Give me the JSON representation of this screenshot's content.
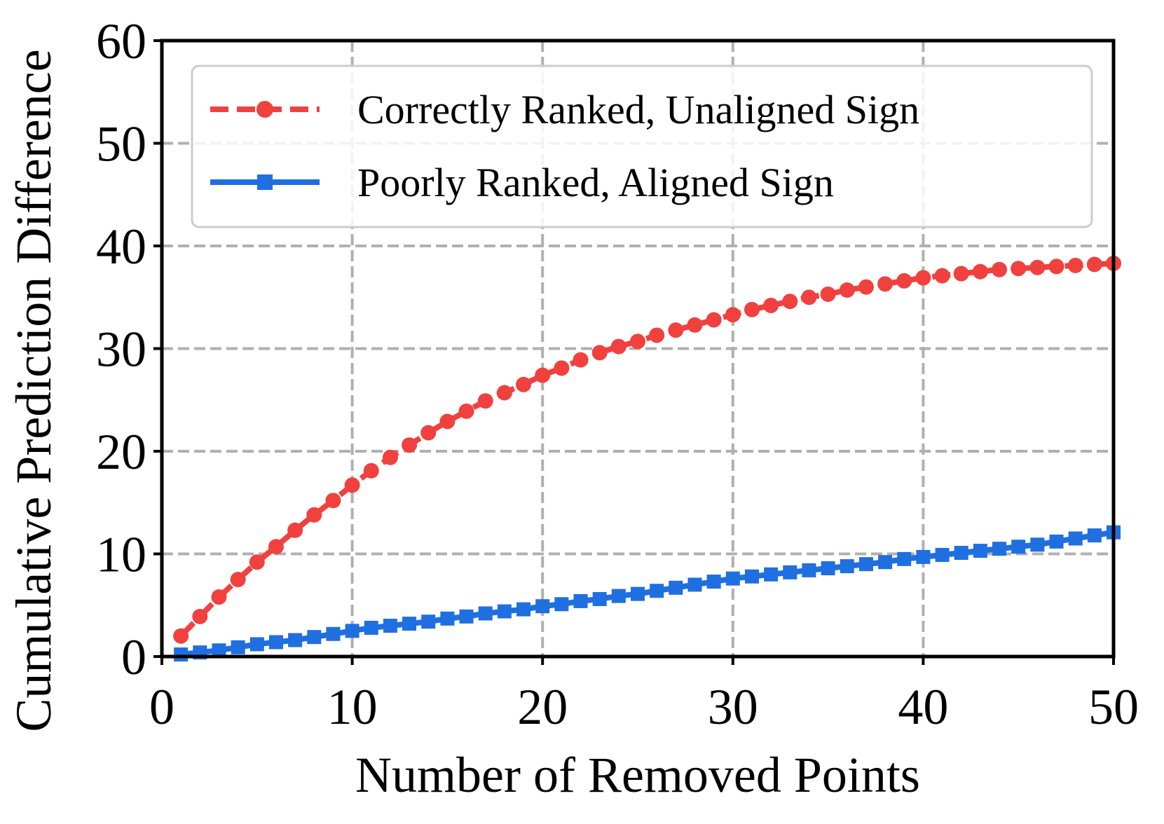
{
  "chart_data": {
    "type": "line",
    "title": "",
    "xlabel": "Number of Removed Points",
    "ylabel": "Cumulative Prediction Difference",
    "xlim": [
      0,
      50
    ],
    "ylim": [
      0,
      60
    ],
    "xticks": [
      0,
      10,
      20,
      30,
      40,
      50
    ],
    "yticks": [
      0,
      10,
      20,
      30,
      40,
      50,
      60
    ],
    "xtick_labels": [
      "0",
      "10",
      "20",
      "30",
      "40",
      "50"
    ],
    "ytick_labels": [
      "0",
      "10",
      "20",
      "30",
      "40",
      "50",
      "60"
    ],
    "grid": true,
    "legend_position": "top-right",
    "x": [
      1,
      2,
      3,
      4,
      5,
      6,
      7,
      8,
      9,
      10,
      11,
      12,
      13,
      14,
      15,
      16,
      17,
      18,
      19,
      20,
      21,
      22,
      23,
      24,
      25,
      26,
      27,
      28,
      29,
      30,
      31,
      32,
      33,
      34,
      35,
      36,
      37,
      38,
      39,
      40,
      41,
      42,
      43,
      44,
      45,
      46,
      47,
      48,
      49,
      50
    ],
    "series": [
      {
        "name": "Correctly Ranked, Unaligned Sign",
        "color": "#f0413f",
        "line_style": "dashed",
        "marker": "circle",
        "values": [
          2.0,
          3.9,
          5.8,
          7.5,
          9.2,
          10.7,
          12.3,
          13.8,
          15.2,
          16.7,
          18.1,
          19.4,
          20.6,
          21.8,
          22.9,
          23.9,
          24.9,
          25.7,
          26.5,
          27.4,
          28.1,
          28.9,
          29.6,
          30.2,
          30.7,
          31.3,
          31.8,
          32.3,
          32.8,
          33.3,
          33.8,
          34.2,
          34.6,
          35.0,
          35.3,
          35.7,
          36.0,
          36.3,
          36.6,
          36.9,
          37.1,
          37.3,
          37.5,
          37.7,
          37.8,
          37.9,
          38.0,
          38.1,
          38.2,
          38.3
        ]
      },
      {
        "name": "Poorly Ranked, Aligned Sign",
        "color": "#1f6fe0",
        "line_style": "solid",
        "marker": "square",
        "values": [
          0.2,
          0.4,
          0.6,
          0.9,
          1.2,
          1.4,
          1.6,
          1.9,
          2.2,
          2.5,
          2.8,
          3.0,
          3.2,
          3.4,
          3.7,
          3.9,
          4.2,
          4.4,
          4.6,
          4.9,
          5.1,
          5.4,
          5.6,
          5.9,
          6.1,
          6.4,
          6.7,
          7.0,
          7.3,
          7.6,
          7.8,
          8.0,
          8.2,
          8.4,
          8.6,
          8.8,
          9.0,
          9.2,
          9.5,
          9.7,
          9.9,
          10.1,
          10.3,
          10.5,
          10.7,
          10.9,
          11.2,
          11.5,
          11.8,
          12.1
        ]
      }
    ]
  }
}
